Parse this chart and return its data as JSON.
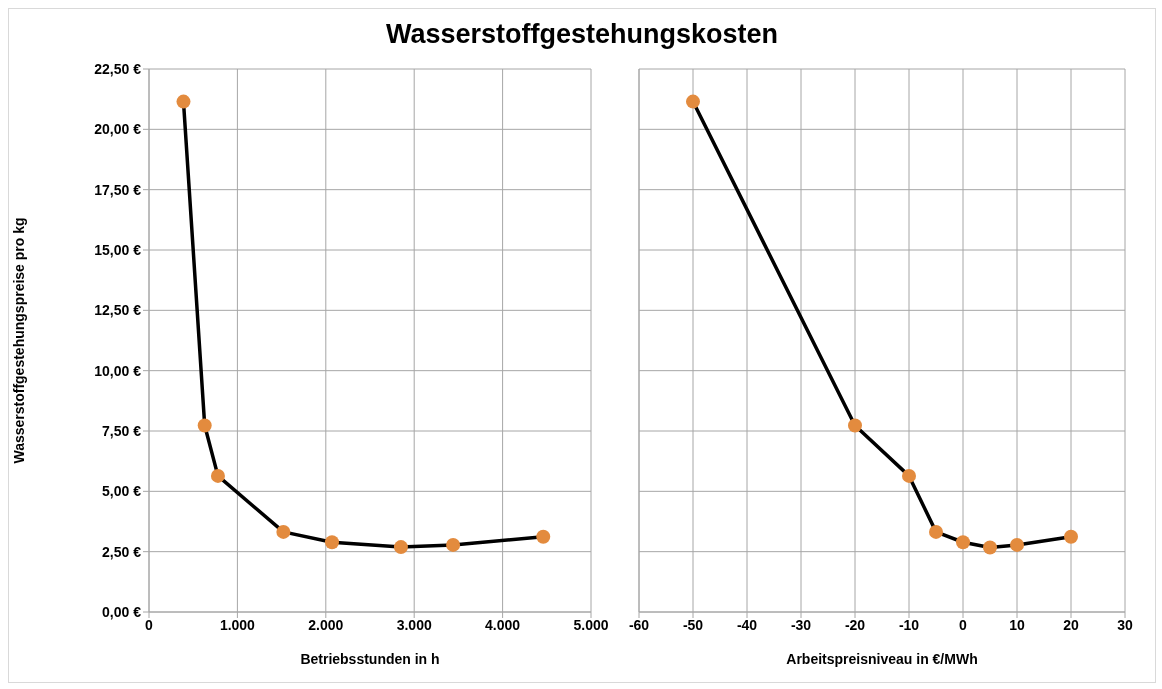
{
  "chart_data": [
    {
      "type": "line",
      "title": "Wasserstoffgestehungskosten",
      "xlabel": "Betriebsstunden in h",
      "ylabel": "Wasserstoffgestehungspreise pro kg",
      "x": [
        390,
        630,
        780,
        1520,
        2070,
        2850,
        3440,
        4460
      ],
      "series": [
        {
          "color": "#000000",
          "colors": [
            "#e38b3e",
            "#e38b3e",
            "#e38b3e",
            "#e38b3e",
            "#e38b3e",
            "#e38b3e",
            "#e38b3e",
            "#e38b3e"
          ],
          "values": [
            21.15,
            7.73,
            5.64,
            3.32,
            2.89,
            2.69,
            2.78,
            3.12
          ]
        }
      ],
      "xlim": [
        0,
        5000
      ],
      "xticks": [
        0,
        {
          "value": 1000,
          "label": "1.000"
        },
        {
          "value": 2000,
          "label": "2.000"
        },
        {
          "value": 3000,
          "label": "3.000"
        },
        {
          "value": 4000,
          "label": "4.000"
        },
        {
          "value": 5000,
          "label": "5.000"
        }
      ],
      "ylim": [
        0,
        22.5
      ],
      "yticks": [
        {
          "value": 0,
          "label": "0,00 €"
        },
        {
          "value": 2.5,
          "label": "2,50 €"
        },
        {
          "value": 5,
          "label": "5,00 €"
        },
        {
          "value": 7.5,
          "label": "7,50 €"
        },
        {
          "value": 10,
          "label": "10,00 €"
        },
        {
          "value": 12.5,
          "label": "12,50 €"
        },
        {
          "value": 15,
          "label": "15,00 €"
        },
        {
          "value": 17.5,
          "label": "17,50 €"
        },
        {
          "value": 20,
          "label": "20,00 €"
        },
        {
          "value": 22.5,
          "label": "22,50 €"
        }
      ],
      "grid": true,
      "marker": "circle",
      "line_style": "solid",
      "legend": false
    },
    {
      "type": "line",
      "xlabel": "Arbeitspreisniveau in €/MWh",
      "x": [
        -50,
        -20,
        -10,
        -5,
        0,
        5,
        10,
        20
      ],
      "series": [
        {
          "color": "#000000",
          "colors": [
            "#e38b3e",
            "#e38b3e",
            "#e38b3e",
            "#e38b3e",
            "#e38b3e",
            "#e38b3e",
            "#e38b3e",
            "#e38b3e"
          ],
          "values": [
            21.15,
            7.73,
            5.64,
            3.32,
            2.89,
            2.67,
            2.78,
            3.12
          ]
        }
      ],
      "xlim": [
        -60,
        30
      ],
      "xticks": [
        -60,
        -50,
        -40,
        -30,
        -20,
        -10,
        0,
        10,
        20,
        30
      ],
      "ylim": [
        0,
        22.5
      ],
      "yticks": [
        0,
        2.5,
        5,
        7.5,
        10,
        12.5,
        15,
        17.5,
        20,
        22.5
      ],
      "grid": true,
      "marker": "circle",
      "line_style": "solid",
      "legend": false,
      "tick_labels": "x"
    }
  ]
}
